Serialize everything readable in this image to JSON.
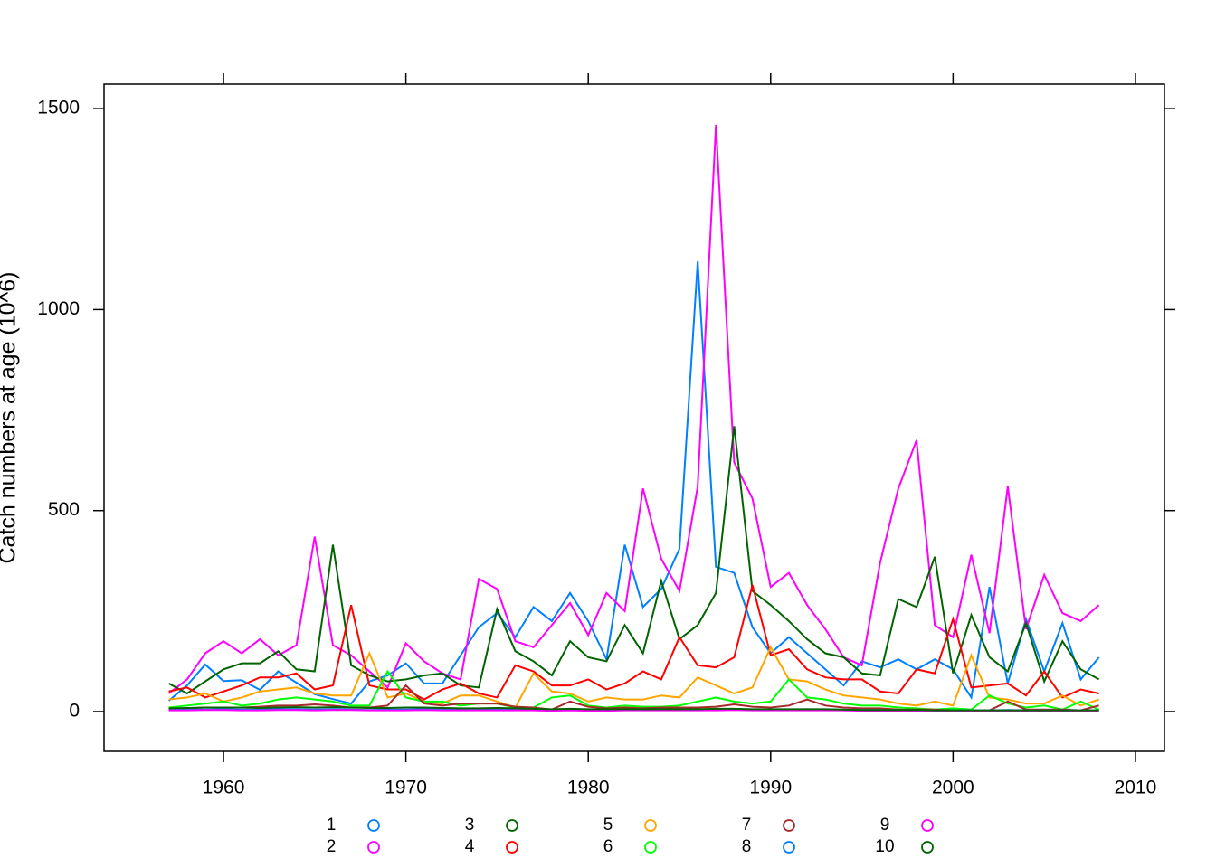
{
  "chart_data": {
    "type": "line",
    "y_label": "Catch numbers at age (10^6)",
    "x": [
      1957,
      1958,
      1959,
      1960,
      1961,
      1962,
      1963,
      1964,
      1965,
      1966,
      1967,
      1968,
      1969,
      1970,
      1971,
      1972,
      1973,
      1974,
      1975,
      1976,
      1977,
      1978,
      1979,
      1980,
      1981,
      1982,
      1983,
      1984,
      1985,
      1986,
      1987,
      1988,
      1989,
      1990,
      1991,
      1992,
      1993,
      1994,
      1995,
      1996,
      1997,
      1998,
      1999,
      2000,
      2001,
      2002,
      2003,
      2004,
      2005,
      2006,
      2007,
      2008
    ],
    "xlim": [
      1953.45,
      2011.59
    ],
    "xticks": [
      1960,
      1970,
      1980,
      1990,
      2000,
      2010
    ],
    "ylim": [
      -99,
      1561
    ],
    "yticks": [
      0,
      500,
      1000,
      1500
    ],
    "series": [
      {
        "name": "1",
        "color": "#0080ff",
        "values": [
          27,
          65,
          117,
          76,
          78,
          54,
          100,
          72,
          43,
          31,
          20,
          75,
          90,
          120,
          70,
          70,
          140,
          210,
          245,
          185,
          260,
          225,
          295,
          225,
          130,
          415,
          260,
          305,
          405,
          1120,
          360,
          345,
          210,
          145,
          185,
          145,
          105,
          65,
          125,
          110,
          130,
          105,
          130,
          105,
          35,
          310,
          70,
          230,
          100,
          220,
          80,
          135
        ]
      },
      {
        "name": "2",
        "color": "#ff00ff",
        "values": [
          45,
          80,
          145,
          175,
          145,
          180,
          140,
          165,
          435,
          165,
          140,
          100,
          60,
          170,
          125,
          95,
          80,
          330,
          305,
          175,
          160,
          215,
          270,
          190,
          295,
          250,
          555,
          380,
          300,
          560,
          1460,
          620,
          530,
          310,
          345,
          265,
          205,
          135,
          115,
          370,
          555,
          675,
          215,
          185,
          390,
          195,
          560,
          205,
          340,
          245,
          225,
          265
        ]
      },
      {
        "name": "3",
        "color": "#006400",
        "values": [
          70,
          45,
          75,
          105,
          120,
          120,
          150,
          105,
          100,
          415,
          115,
          90,
          75,
          80,
          90,
          95,
          65,
          60,
          255,
          150,
          125,
          90,
          175,
          135,
          125,
          215,
          145,
          325,
          180,
          215,
          295,
          710,
          300,
          265,
          225,
          180,
          145,
          135,
          95,
          90,
          280,
          260,
          385,
          95,
          240,
          135,
          100,
          220,
          75,
          175,
          105,
          80
        ]
      },
      {
        "name": "4",
        "color": "#ff0000",
        "values": [
          50,
          60,
          35,
          50,
          65,
          85,
          85,
          95,
          55,
          65,
          265,
          65,
          55,
          55,
          30,
          55,
          70,
          45,
          35,
          115,
          100,
          65,
          65,
          80,
          55,
          70,
          100,
          80,
          185,
          115,
          110,
          135,
          315,
          140,
          155,
          105,
          85,
          80,
          80,
          50,
          45,
          105,
          95,
          230,
          60,
          65,
          70,
          40,
          100,
          35,
          55,
          45
        ]
      },
      {
        "name": "5",
        "color": "#ffa500",
        "values": [
          30,
          35,
          45,
          25,
          35,
          50,
          55,
          60,
          45,
          40,
          40,
          145,
          35,
          45,
          25,
          20,
          40,
          40,
          25,
          10,
          95,
          50,
          45,
          25,
          35,
          30,
          30,
          40,
          35,
          85,
          65,
          45,
          60,
          160,
          80,
          75,
          55,
          40,
          35,
          30,
          20,
          15,
          25,
          15,
          140,
          35,
          30,
          20,
          20,
          40,
          15,
          30
        ]
      },
      {
        "name": "6",
        "color": "#00ff00",
        "values": [
          10,
          15,
          20,
          25,
          15,
          20,
          30,
          35,
          30,
          25,
          15,
          15,
          100,
          35,
          25,
          25,
          15,
          20,
          20,
          10,
          10,
          35,
          40,
          15,
          10,
          15,
          12,
          12,
          15,
          25,
          35,
          25,
          20,
          25,
          80,
          35,
          30,
          20,
          15,
          15,
          10,
          8,
          5,
          8,
          5,
          40,
          20,
          10,
          15,
          5,
          25,
          5
        ]
      },
      {
        "name": "7",
        "color": "#a52a2a",
        "values": [
          5,
          8,
          10,
          10,
          10,
          12,
          15,
          15,
          18,
          15,
          10,
          10,
          15,
          65,
          20,
          15,
          20,
          20,
          20,
          12,
          10,
          5,
          25,
          12,
          8,
          10,
          8,
          10,
          10,
          10,
          12,
          18,
          12,
          10,
          15,
          30,
          15,
          10,
          8,
          8,
          5,
          5,
          5,
          3,
          3,
          3,
          25,
          5,
          5,
          5,
          3,
          15
        ]
      },
      {
        "name": "8",
        "color": "#0080ff",
        "values": [
          4,
          5,
          5,
          6,
          5,
          5,
          6,
          6,
          5,
          6,
          5,
          4,
          5,
          5,
          6,
          5,
          5,
          5,
          6,
          5,
          4,
          4,
          5,
          4,
          4,
          5,
          5,
          4,
          5,
          5,
          6,
          6,
          5,
          5,
          5,
          6,
          5,
          4,
          4,
          4,
          3,
          3,
          3,
          3,
          3,
          3,
          4,
          3,
          3,
          3,
          3,
          3
        ]
      },
      {
        "name": "9",
        "color": "#ff00ff",
        "values": [
          3,
          3,
          4,
          4,
          3,
          3,
          4,
          4,
          3,
          4,
          4,
          3,
          3,
          3,
          4,
          3,
          3,
          3,
          3,
          3,
          3,
          2,
          3,
          2,
          2,
          3,
          3,
          3,
          3,
          3,
          3,
          4,
          3,
          3,
          3,
          3,
          3,
          3,
          2,
          2,
          2,
          2,
          2,
          2,
          2,
          2,
          2,
          2,
          2,
          2,
          2,
          2
        ]
      },
      {
        "name": "10",
        "color": "#006400",
        "values": [
          8,
          9,
          10,
          10,
          10,
          9,
          10,
          11,
          10,
          11,
          10,
          9,
          9,
          10,
          10,
          9,
          8,
          8,
          9,
          8,
          7,
          6,
          7,
          6,
          6,
          6,
          6,
          6,
          6,
          6,
          7,
          7,
          6,
          6,
          6,
          6,
          6,
          5,
          4,
          4,
          4,
          4,
          3,
          3,
          3,
          3,
          3,
          3,
          3,
          3,
          3,
          3
        ]
      }
    ]
  }
}
